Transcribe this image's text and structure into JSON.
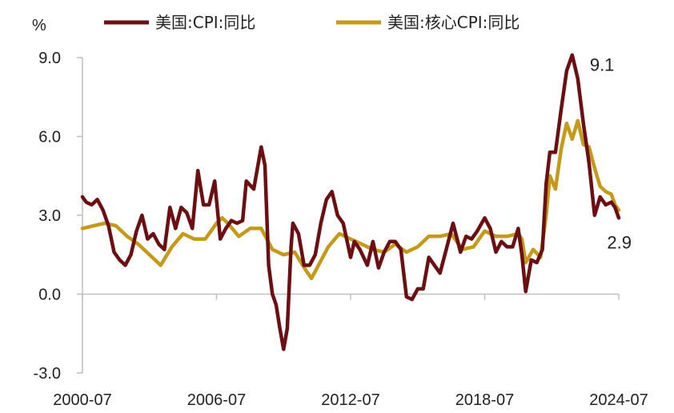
{
  "chart_data": {
    "type": "line",
    "unit_label": "%",
    "x_tick_labels": [
      "2000-07",
      "2006-07",
      "2012-07",
      "2018-07",
      "2024-07"
    ],
    "y_tick_labels": [
      "9.0",
      "6.0",
      "3.0",
      "0.0",
      "-3.0"
    ],
    "ylim": [
      -3.0,
      9.0
    ],
    "yticks": [
      9.0,
      6.0,
      3.0,
      0.0,
      -3.0
    ],
    "xlim": [
      "2000-07",
      "2024-07"
    ],
    "grid": false,
    "legend_position": "top",
    "series": [
      {
        "name": "美国:CPI:同比",
        "color": "#6b0f12",
        "points": [
          [
            "2000-07",
            3.7
          ],
          [
            "2000-09",
            3.5
          ],
          [
            "2000-12",
            3.4
          ],
          [
            "2001-03",
            3.6
          ],
          [
            "2001-06",
            3.2
          ],
          [
            "2001-09",
            2.6
          ],
          [
            "2001-12",
            1.6
          ],
          [
            "2002-03",
            1.3
          ],
          [
            "2002-06",
            1.1
          ],
          [
            "2002-09",
            1.5
          ],
          [
            "2002-12",
            2.4
          ],
          [
            "2003-03",
            3.0
          ],
          [
            "2003-06",
            2.1
          ],
          [
            "2003-09",
            2.3
          ],
          [
            "2003-12",
            1.9
          ],
          [
            "2004-03",
            1.7
          ],
          [
            "2004-06",
            3.3
          ],
          [
            "2004-09",
            2.5
          ],
          [
            "2004-12",
            3.3
          ],
          [
            "2005-03",
            3.1
          ],
          [
            "2005-06",
            2.5
          ],
          [
            "2005-09",
            4.7
          ],
          [
            "2005-12",
            3.4
          ],
          [
            "2006-03",
            3.4
          ],
          [
            "2006-06",
            4.3
          ],
          [
            "2006-09",
            2.1
          ],
          [
            "2006-12",
            2.5
          ],
          [
            "2007-03",
            2.8
          ],
          [
            "2007-06",
            2.7
          ],
          [
            "2007-09",
            2.8
          ],
          [
            "2007-11",
            4.3
          ],
          [
            "2008-03",
            4.0
          ],
          [
            "2008-07",
            5.6
          ],
          [
            "2008-09",
            4.9
          ],
          [
            "2008-11",
            1.1
          ],
          [
            "2009-01",
            0.0
          ],
          [
            "2009-03",
            -0.4
          ],
          [
            "2009-05",
            -1.3
          ],
          [
            "2009-07",
            -2.1
          ],
          [
            "2009-09",
            -1.3
          ],
          [
            "2009-11",
            1.8
          ],
          [
            "2009-12",
            2.7
          ],
          [
            "2010-03",
            2.3
          ],
          [
            "2010-06",
            1.1
          ],
          [
            "2010-09",
            1.1
          ],
          [
            "2010-12",
            1.5
          ],
          [
            "2011-03",
            2.7
          ],
          [
            "2011-06",
            3.6
          ],
          [
            "2011-09",
            3.9
          ],
          [
            "2011-12",
            3.0
          ],
          [
            "2012-03",
            2.7
          ],
          [
            "2012-07",
            1.4
          ],
          [
            "2012-09",
            2.0
          ],
          [
            "2012-12",
            1.7
          ],
          [
            "2013-04",
            1.1
          ],
          [
            "2013-07",
            2.0
          ],
          [
            "2013-10",
            1.0
          ],
          [
            "2014-01",
            1.6
          ],
          [
            "2014-04",
            2.0
          ],
          [
            "2014-07",
            2.0
          ],
          [
            "2014-10",
            1.7
          ],
          [
            "2015-01",
            -0.1
          ],
          [
            "2015-04",
            -0.2
          ],
          [
            "2015-07",
            0.2
          ],
          [
            "2015-10",
            0.2
          ],
          [
            "2016-01",
            1.4
          ],
          [
            "2016-04",
            1.1
          ],
          [
            "2016-07",
            0.8
          ],
          [
            "2016-10",
            1.6
          ],
          [
            "2017-02",
            2.7
          ],
          [
            "2017-06",
            1.6
          ],
          [
            "2017-09",
            2.2
          ],
          [
            "2017-12",
            2.1
          ],
          [
            "2018-03",
            2.4
          ],
          [
            "2018-07",
            2.9
          ],
          [
            "2018-10",
            2.5
          ],
          [
            "2019-01",
            1.6
          ],
          [
            "2019-04",
            2.0
          ],
          [
            "2019-07",
            1.8
          ],
          [
            "2019-10",
            1.8
          ],
          [
            "2020-01",
            2.5
          ],
          [
            "2020-03",
            1.5
          ],
          [
            "2020-05",
            0.1
          ],
          [
            "2020-08",
            1.3
          ],
          [
            "2020-11",
            1.2
          ],
          [
            "2021-02",
            1.7
          ],
          [
            "2021-04",
            4.2
          ],
          [
            "2021-06",
            5.4
          ],
          [
            "2021-09",
            5.4
          ],
          [
            "2021-12",
            7.0
          ],
          [
            "2022-03",
            8.5
          ],
          [
            "2022-06",
            9.1
          ],
          [
            "2022-09",
            8.2
          ],
          [
            "2022-12",
            6.5
          ],
          [
            "2023-03",
            5.0
          ],
          [
            "2023-06",
            3.0
          ],
          [
            "2023-09",
            3.7
          ],
          [
            "2023-12",
            3.4
          ],
          [
            "2024-03",
            3.5
          ],
          [
            "2024-05",
            3.3
          ],
          [
            "2024-07",
            2.9
          ]
        ]
      },
      {
        "name": "美国:核心CPI:同比",
        "color": "#c49a1a",
        "points": [
          [
            "2000-07",
            2.5
          ],
          [
            "2001-01",
            2.6
          ],
          [
            "2001-07",
            2.7
          ],
          [
            "2002-01",
            2.6
          ],
          [
            "2002-07",
            2.2
          ],
          [
            "2003-01",
            1.9
          ],
          [
            "2003-07",
            1.5
          ],
          [
            "2004-01",
            1.1
          ],
          [
            "2004-07",
            1.8
          ],
          [
            "2005-01",
            2.3
          ],
          [
            "2005-07",
            2.1
          ],
          [
            "2006-01",
            2.1
          ],
          [
            "2006-07",
            2.7
          ],
          [
            "2006-10",
            2.9
          ],
          [
            "2007-01",
            2.7
          ],
          [
            "2007-07",
            2.2
          ],
          [
            "2008-01",
            2.5
          ],
          [
            "2008-07",
            2.5
          ],
          [
            "2009-01",
            1.7
          ],
          [
            "2009-07",
            1.5
          ],
          [
            "2010-01",
            1.6
          ],
          [
            "2010-07",
            0.9
          ],
          [
            "2010-10",
            0.6
          ],
          [
            "2011-01",
            1.0
          ],
          [
            "2011-07",
            1.8
          ],
          [
            "2012-01",
            2.3
          ],
          [
            "2012-07",
            2.1
          ],
          [
            "2013-01",
            1.9
          ],
          [
            "2013-07",
            1.7
          ],
          [
            "2014-01",
            1.6
          ],
          [
            "2014-07",
            1.9
          ],
          [
            "2015-01",
            1.6
          ],
          [
            "2015-07",
            1.8
          ],
          [
            "2016-01",
            2.2
          ],
          [
            "2016-07",
            2.2
          ],
          [
            "2017-01",
            2.3
          ],
          [
            "2017-07",
            1.7
          ],
          [
            "2018-01",
            1.8
          ],
          [
            "2018-07",
            2.4
          ],
          [
            "2019-01",
            2.2
          ],
          [
            "2019-07",
            2.2
          ],
          [
            "2020-01",
            2.3
          ],
          [
            "2020-03",
            2.1
          ],
          [
            "2020-05",
            1.2
          ],
          [
            "2020-09",
            1.7
          ],
          [
            "2021-01",
            1.4
          ],
          [
            "2021-04",
            3.0
          ],
          [
            "2021-06",
            4.5
          ],
          [
            "2021-09",
            4.0
          ],
          [
            "2021-12",
            5.5
          ],
          [
            "2022-03",
            6.5
          ],
          [
            "2022-06",
            5.9
          ],
          [
            "2022-09",
            6.6
          ],
          [
            "2022-12",
            5.7
          ],
          [
            "2023-03",
            5.6
          ],
          [
            "2023-06",
            4.8
          ],
          [
            "2023-09",
            4.1
          ],
          [
            "2023-12",
            3.9
          ],
          [
            "2024-03",
            3.8
          ],
          [
            "2024-05",
            3.4
          ],
          [
            "2024-07",
            3.2
          ]
        ]
      }
    ],
    "annotations": [
      {
        "text": "9.1",
        "series": 0,
        "at": "2022-06",
        "value": 9.1
      },
      {
        "text": "2.9",
        "series": 0,
        "at": "2024-07",
        "value": 2.9
      }
    ]
  }
}
